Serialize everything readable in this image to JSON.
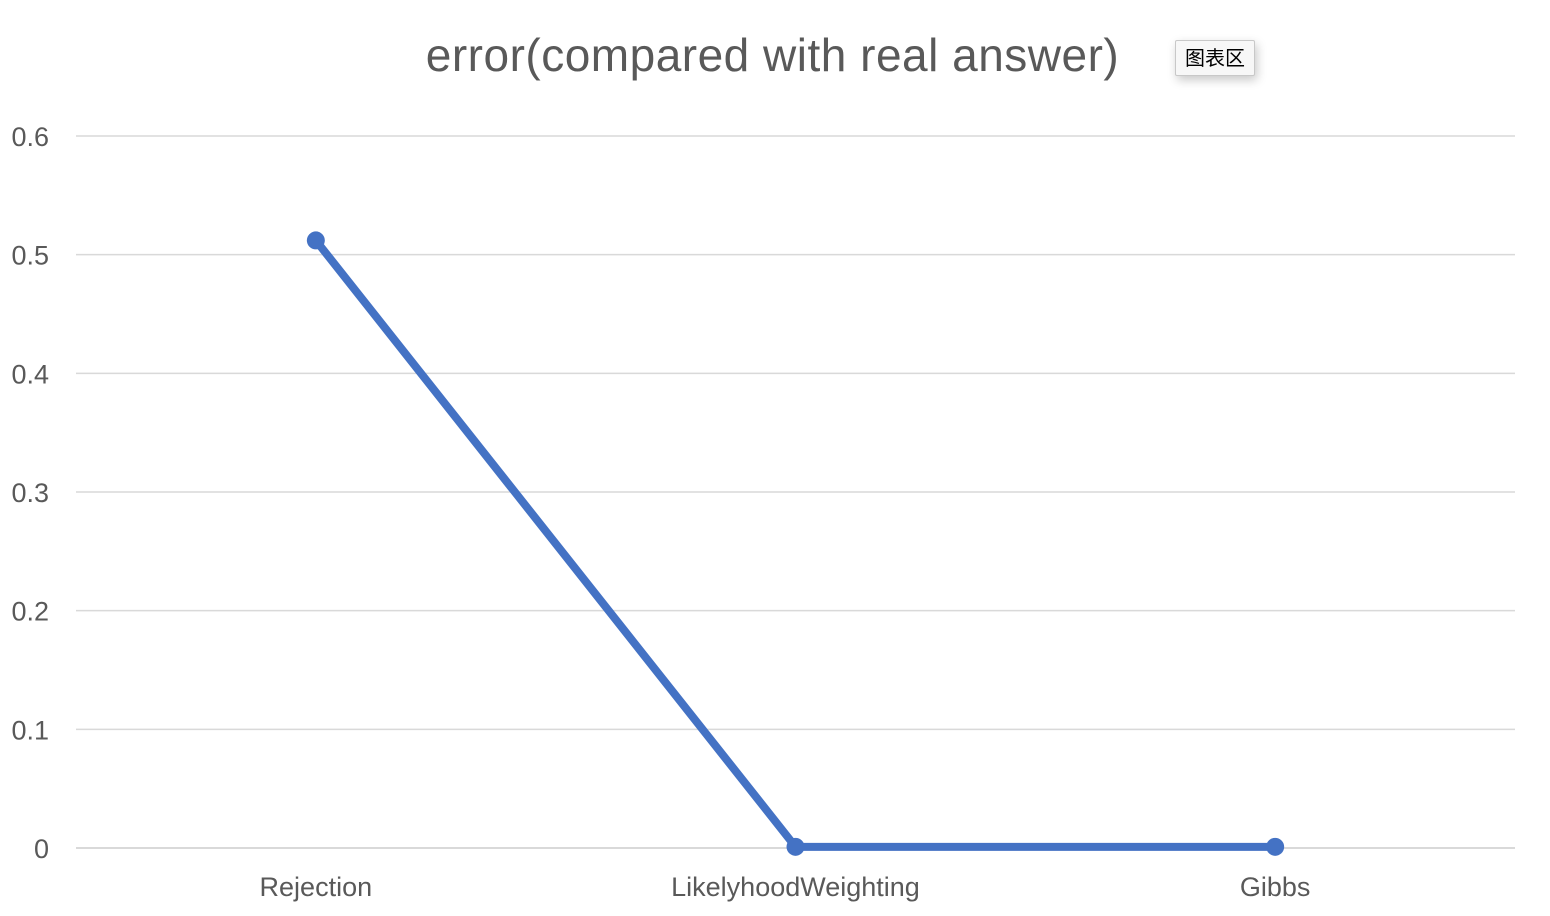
{
  "chart_data": {
    "type": "line",
    "title": "error(compared with real answer)",
    "categories": [
      "Rejection",
      "LikelyhoodWeighting",
      "Gibbs"
    ],
    "series": [
      {
        "values": [
          0.512,
          0.001,
          0.001
        ]
      }
    ],
    "y_ticks": [
      "0",
      "0.1",
      "0.2",
      "0.3",
      "0.4",
      "0.5",
      "0.6"
    ],
    "ylim": [
      0,
      0.6
    ],
    "grid": true,
    "legend": "none",
    "line_color": "#4472C4",
    "grid_color": "#d9d9d9",
    "text_color": "#595959"
  },
  "tooltip": {
    "label": "图表区"
  }
}
